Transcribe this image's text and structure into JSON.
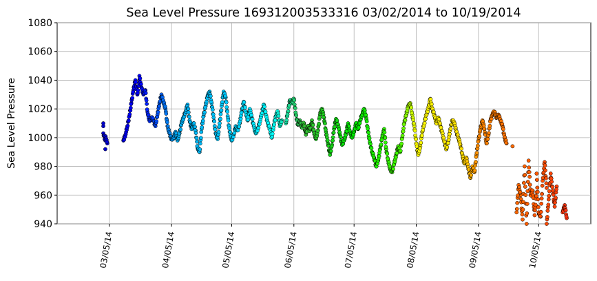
{
  "chart_data": {
    "type": "scatter",
    "title": "Sea Level Pressure 169312003533316  03/02/2014 to 10/19/2014",
    "xlabel": "",
    "ylabel": "Sea Level Pressure",
    "xlim": [
      "2014-02-07",
      "2014-10-31"
    ],
    "ylim": [
      940,
      1080
    ],
    "y_ticks": [
      940,
      960,
      980,
      1000,
      1020,
      1040,
      1060,
      1080
    ],
    "x_ticks": [
      {
        "date": "2014-03-05",
        "label": "03/05/14"
      },
      {
        "date": "2014-04-05",
        "label": "04/05/14"
      },
      {
        "date": "2014-05-05",
        "label": "05/05/14"
      },
      {
        "date": "2014-06-05",
        "label": "06/05/14"
      },
      {
        "date": "2014-07-05",
        "label": "07/05/14"
      },
      {
        "date": "2014-08-05",
        "label": "08/05/14"
      },
      {
        "date": "2014-09-05",
        "label": "09/05/14"
      },
      {
        "date": "2014-10-05",
        "label": "10/05/14"
      }
    ],
    "grid": true,
    "marker_edge_color": "#000000",
    "color_by_time_stops": [
      {
        "date": "2014-03-02",
        "color": "#0000cc"
      },
      {
        "date": "2014-03-20",
        "color": "#0000ff"
      },
      {
        "date": "2014-04-08",
        "color": "#00aaee"
      },
      {
        "date": "2014-05-05",
        "color": "#00ccff"
      },
      {
        "date": "2014-05-25",
        "color": "#00ffff"
      },
      {
        "date": "2014-06-10",
        "color": "#33bb33"
      },
      {
        "date": "2014-07-05",
        "color": "#00ee00"
      },
      {
        "date": "2014-07-28",
        "color": "#44ff00"
      },
      {
        "date": "2014-08-05",
        "color": "#ffff00"
      },
      {
        "date": "2014-08-28",
        "color": "#ffdd00"
      },
      {
        "date": "2014-09-05",
        "color": "#ff8800"
      },
      {
        "date": "2014-10-05",
        "color": "#ff5500"
      },
      {
        "date": "2014-10-19",
        "color": "#ff3311"
      }
    ],
    "series": [
      {
        "points": [
          [
            "2014-03-02",
            1008
          ],
          [
            "2014-03-02",
            1010
          ],
          [
            "2014-03-02",
            1003
          ],
          [
            "2014-03-03",
            998
          ],
          [
            "2014-03-03",
            992
          ],
          [
            "2014-03-03",
            1001
          ],
          [
            "2014-03-04",
            996
          ],
          [
            "2014-03-12",
            998
          ],
          [
            "2014-03-13",
            1002
          ],
          [
            "2014-03-14",
            1008
          ],
          [
            "2014-03-15",
            1015
          ],
          [
            "2014-03-16",
            1024
          ],
          [
            "2014-03-17",
            1033
          ],
          [
            "2014-03-18",
            1040
          ],
          [
            "2014-03-19",
            1030
          ],
          [
            "2014-03-20",
            1040
          ],
          [
            "2014-03-20",
            1043
          ],
          [
            "2014-03-21",
            1035
          ],
          [
            "2014-03-22",
            1030
          ],
          [
            "2014-03-23",
            1033
          ],
          [
            "2014-03-24",
            1018
          ],
          [
            "2014-03-25",
            1012
          ],
          [
            "2014-03-26",
            1014
          ],
          [
            "2014-03-27",
            1012
          ],
          [
            "2014-03-28",
            1008
          ],
          [
            "2014-03-29",
            1016
          ],
          [
            "2014-03-30",
            1024
          ],
          [
            "2014-03-31",
            1030
          ],
          [
            "2014-04-01",
            1025
          ],
          [
            "2014-04-02",
            1020
          ],
          [
            "2014-04-03",
            1008
          ],
          [
            "2014-04-04",
            1003
          ],
          [
            "2014-04-05",
            999
          ],
          [
            "2014-04-06",
            1000
          ],
          [
            "2014-04-07",
            1004
          ],
          [
            "2014-04-08",
            998
          ],
          [
            "2014-04-09",
            1003
          ],
          [
            "2014-04-10",
            1010
          ],
          [
            "2014-04-11",
            1014
          ],
          [
            "2014-04-12",
            1018
          ],
          [
            "2014-04-13",
            1023
          ],
          [
            "2014-04-14",
            1012
          ],
          [
            "2014-04-15",
            1006
          ],
          [
            "2014-04-16",
            1010
          ],
          [
            "2014-04-17",
            1005
          ],
          [
            "2014-04-18",
            993
          ],
          [
            "2014-04-19",
            990
          ],
          [
            "2014-04-20",
            1006
          ],
          [
            "2014-04-21",
            1015
          ],
          [
            "2014-04-22",
            1022
          ],
          [
            "2014-04-23",
            1029
          ],
          [
            "2014-04-24",
            1032
          ],
          [
            "2014-04-25",
            1024
          ],
          [
            "2014-04-26",
            1014
          ],
          [
            "2014-04-27",
            1003
          ],
          [
            "2014-04-28",
            999
          ],
          [
            "2014-04-29",
            1010
          ],
          [
            "2014-04-30",
            1022
          ],
          [
            "2014-05-01",
            1032
          ],
          [
            "2014-05-02",
            1028
          ],
          [
            "2014-05-03",
            1015
          ],
          [
            "2014-05-04",
            1004
          ],
          [
            "2014-05-05",
            998
          ],
          [
            "2014-05-06",
            1002
          ],
          [
            "2014-05-07",
            1008
          ],
          [
            "2014-05-08",
            1005
          ],
          [
            "2014-05-09",
            1010
          ],
          [
            "2014-05-10",
            1018
          ],
          [
            "2014-05-11",
            1025
          ],
          [
            "2014-05-12",
            1018
          ],
          [
            "2014-05-13",
            1012
          ],
          [
            "2014-05-14",
            1020
          ],
          [
            "2014-05-15",
            1014
          ],
          [
            "2014-05-16",
            1008
          ],
          [
            "2014-05-17",
            1003
          ],
          [
            "2014-05-18",
            1006
          ],
          [
            "2014-05-19",
            1011
          ],
          [
            "2014-05-20",
            1017
          ],
          [
            "2014-05-21",
            1023
          ],
          [
            "2014-05-22",
            1016
          ],
          [
            "2014-05-23",
            1010
          ],
          [
            "2014-05-24",
            1006
          ],
          [
            "2014-05-25",
            1000
          ],
          [
            "2014-05-26",
            1009
          ],
          [
            "2014-05-27",
            1015
          ],
          [
            "2014-05-28",
            1018
          ],
          [
            "2014-05-29",
            1008
          ],
          [
            "2014-05-30",
            1012
          ],
          [
            "2014-06-01",
            1010
          ],
          [
            "2014-06-02",
            1018
          ],
          [
            "2014-06-03",
            1026
          ],
          [
            "2014-06-04",
            1024
          ],
          [
            "2014-06-05",
            1027
          ],
          [
            "2014-06-06",
            1016
          ],
          [
            "2014-06-07",
            1009
          ],
          [
            "2014-06-08",
            1012
          ],
          [
            "2014-06-09",
            1007
          ],
          [
            "2014-06-10",
            1010
          ],
          [
            "2014-06-11",
            1002
          ],
          [
            "2014-06-12",
            1008
          ],
          [
            "2014-06-13",
            1005
          ],
          [
            "2014-06-14",
            1012
          ],
          [
            "2014-06-15",
            1004
          ],
          [
            "2014-06-16",
            999
          ],
          [
            "2014-06-17",
            1005
          ],
          [
            "2014-06-18",
            1016
          ],
          [
            "2014-06-19",
            1020
          ],
          [
            "2014-06-20",
            1014
          ],
          [
            "2014-06-21",
            1004
          ],
          [
            "2014-06-22",
            996
          ],
          [
            "2014-06-23",
            988
          ],
          [
            "2014-06-24",
            995
          ],
          [
            "2014-06-25",
            1006
          ],
          [
            "2014-06-26",
            1013
          ],
          [
            "2014-06-27",
            1009
          ],
          [
            "2014-06-28",
            1002
          ],
          [
            "2014-06-29",
            995
          ],
          [
            "2014-06-30",
            998
          ],
          [
            "2014-07-01",
            1003
          ],
          [
            "2014-07-02",
            1010
          ],
          [
            "2014-07-03",
            1004
          ],
          [
            "2014-07-04",
            1000
          ],
          [
            "2014-07-05",
            1004
          ],
          [
            "2014-07-06",
            1010
          ],
          [
            "2014-07-07",
            1006
          ],
          [
            "2014-07-08",
            1012
          ],
          [
            "2014-07-09",
            1016
          ],
          [
            "2014-07-10",
            1020
          ],
          [
            "2014-07-11",
            1014
          ],
          [
            "2014-07-12",
            1004
          ],
          [
            "2014-07-13",
            996
          ],
          [
            "2014-07-14",
            990
          ],
          [
            "2014-07-15",
            986
          ],
          [
            "2014-07-16",
            980
          ],
          [
            "2014-07-17",
            984
          ],
          [
            "2014-07-18",
            992
          ],
          [
            "2014-07-19",
            1000
          ],
          [
            "2014-07-20",
            1006
          ],
          [
            "2014-07-21",
            992
          ],
          [
            "2014-07-22",
            984
          ],
          [
            "2014-07-23",
            978
          ],
          [
            "2014-07-24",
            976
          ],
          [
            "2014-07-25",
            982
          ],
          [
            "2014-07-26",
            988
          ],
          [
            "2014-07-27",
            994
          ],
          [
            "2014-07-28",
            990
          ],
          [
            "2014-07-29",
            1000
          ],
          [
            "2014-07-30",
            1010
          ],
          [
            "2014-07-31",
            1016
          ],
          [
            "2014-08-01",
            1022
          ],
          [
            "2014-08-02",
            1024
          ],
          [
            "2014-08-03",
            1016
          ],
          [
            "2014-08-04",
            1008
          ],
          [
            "2014-08-05",
            996
          ],
          [
            "2014-08-06",
            988
          ],
          [
            "2014-08-07",
            994
          ],
          [
            "2014-08-08",
            1004
          ],
          [
            "2014-08-09",
            1010
          ],
          [
            "2014-08-10",
            1016
          ],
          [
            "2014-08-11",
            1020
          ],
          [
            "2014-08-12",
            1027
          ],
          [
            "2014-08-13",
            1020
          ],
          [
            "2014-08-14",
            1016
          ],
          [
            "2014-08-15",
            1010
          ],
          [
            "2014-08-16",
            1014
          ],
          [
            "2014-08-17",
            1008
          ],
          [
            "2014-08-18",
            1003
          ],
          [
            "2014-08-19",
            997
          ],
          [
            "2014-08-20",
            992
          ],
          [
            "2014-08-21",
            998
          ],
          [
            "2014-08-22",
            1006
          ],
          [
            "2014-08-23",
            1012
          ],
          [
            "2014-08-24",
            1010
          ],
          [
            "2014-08-25",
            1004
          ],
          [
            "2014-08-26",
            1000
          ],
          [
            "2014-08-27",
            995
          ],
          [
            "2014-08-28",
            988
          ],
          [
            "2014-08-29",
            982
          ],
          [
            "2014-08-30",
            986
          ],
          [
            "2014-08-31",
            978
          ],
          [
            "2014-09-01",
            972
          ],
          [
            "2014-09-02",
            980
          ],
          [
            "2014-09-03",
            976
          ],
          [
            "2014-09-04",
            988
          ],
          [
            "2014-09-05",
            998
          ],
          [
            "2014-09-06",
            1006
          ],
          [
            "2014-09-07",
            1012
          ],
          [
            "2014-09-08",
            1006
          ],
          [
            "2014-09-09",
            996
          ],
          [
            "2014-09-10",
            1002
          ],
          [
            "2014-09-11",
            1012
          ],
          [
            "2014-09-12",
            1016
          ],
          [
            "2014-09-13",
            1018
          ],
          [
            "2014-09-14",
            1014
          ],
          [
            "2014-09-15",
            1016
          ],
          [
            "2014-09-16",
            1012
          ],
          [
            "2014-09-17",
            1008
          ],
          [
            "2014-09-18",
            1000
          ],
          [
            "2014-09-19",
            996
          ],
          [
            "2014-09-22",
            994
          ],
          [
            "2014-09-24",
            948
          ],
          [
            "2014-09-25",
            967
          ],
          [
            "2014-09-26",
            960
          ],
          [
            "2014-09-27",
            943
          ],
          [
            "2014-09-28",
            980
          ],
          [
            "2014-09-29",
            940
          ],
          [
            "2014-09-30",
            984
          ],
          [
            "2014-10-01",
            960
          ],
          [
            "2014-10-02",
            963
          ],
          [
            "2014-10-03",
            946
          ],
          [
            "2014-10-04",
            962
          ],
          [
            "2014-10-04",
            975
          ],
          [
            "2014-10-05",
            948
          ],
          [
            "2014-10-06",
            945
          ],
          [
            "2014-10-07",
            970
          ],
          [
            "2014-10-08",
            983
          ],
          [
            "2014-10-09",
            965
          ],
          [
            "2014-10-09",
            940
          ],
          [
            "2014-10-10",
            957
          ],
          [
            "2014-10-11",
            975
          ],
          [
            "2014-10-12",
            963
          ],
          [
            "2014-10-13",
            952
          ],
          [
            "2014-10-14",
            966
          ],
          [
            "2014-10-17",
            948
          ],
          [
            "2014-10-18",
            953
          ],
          [
            "2014-10-19",
            944
          ]
        ]
      }
    ]
  }
}
